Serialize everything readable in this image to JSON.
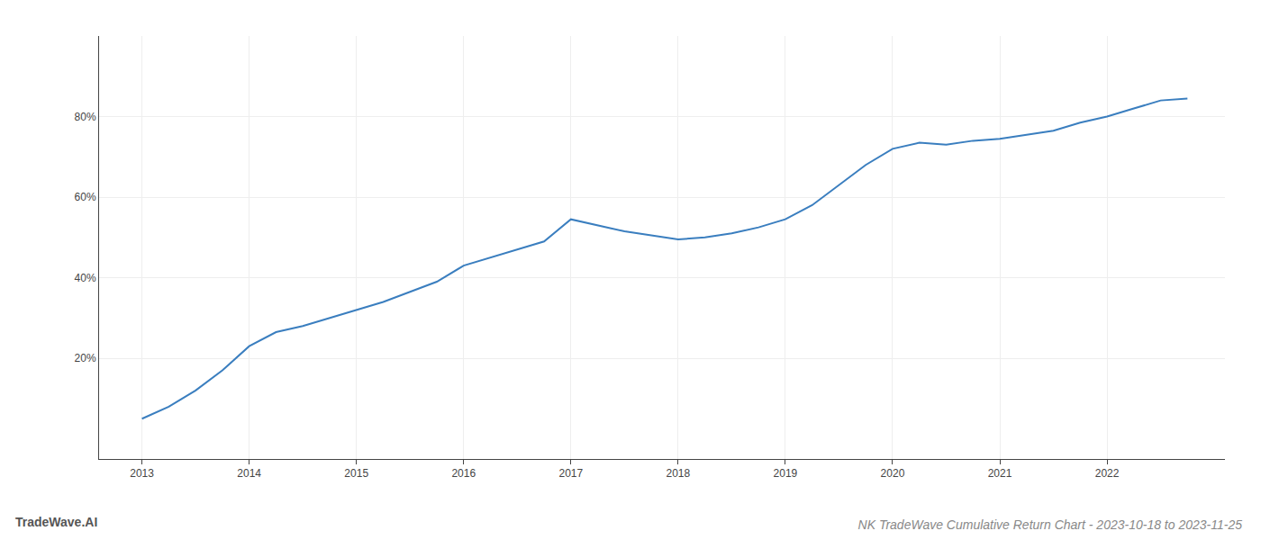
{
  "chart_data": {
    "type": "line",
    "title": "NK TradeWave Cumulative Return Chart - 2023-10-18 to 2023-11-25",
    "annotations": [
      "TradeWave.AI"
    ],
    "color": "#3a7ebf",
    "grid": true,
    "x": [
      2013.0,
      2013.25,
      2013.5,
      2013.75,
      2014.0,
      2014.25,
      2014.5,
      2014.75,
      2015.0,
      2015.25,
      2015.5,
      2015.75,
      2016.0,
      2016.25,
      2016.5,
      2016.75,
      2017.0,
      2017.25,
      2017.5,
      2017.75,
      2018.0,
      2018.25,
      2018.5,
      2018.75,
      2019.0,
      2019.25,
      2019.5,
      2019.75,
      2020.0,
      2020.25,
      2020.5,
      2020.75,
      2021.0,
      2021.25,
      2021.5,
      2021.75,
      2022.0,
      2022.25,
      2022.5,
      2022.75
    ],
    "values": [
      5.0,
      8.0,
      12.0,
      17.0,
      23.0,
      26.5,
      28.0,
      30.0,
      32.0,
      34.0,
      36.5,
      39.0,
      43.0,
      45.0,
      47.0,
      49.0,
      54.5,
      53.0,
      51.5,
      50.5,
      49.5,
      50.0,
      51.0,
      52.5,
      54.5,
      58.0,
      63.0,
      68.0,
      72.0,
      73.5,
      73.0,
      74.0,
      74.5,
      75.5,
      76.5,
      78.5,
      80.0,
      82.0,
      84.0,
      84.5
    ],
    "xlim": [
      2012.6,
      2023.1
    ],
    "xticks": [
      2013,
      2014,
      2015,
      2016,
      2017,
      2018,
      2019,
      2020,
      2021,
      2022
    ],
    "ylim": [
      -5,
      100
    ],
    "yticks": [
      {
        "value": 20,
        "label": "20%"
      },
      {
        "value": 40,
        "label": "40%"
      },
      {
        "value": 60,
        "label": "60%"
      },
      {
        "value": 80,
        "label": "80%"
      }
    ]
  }
}
